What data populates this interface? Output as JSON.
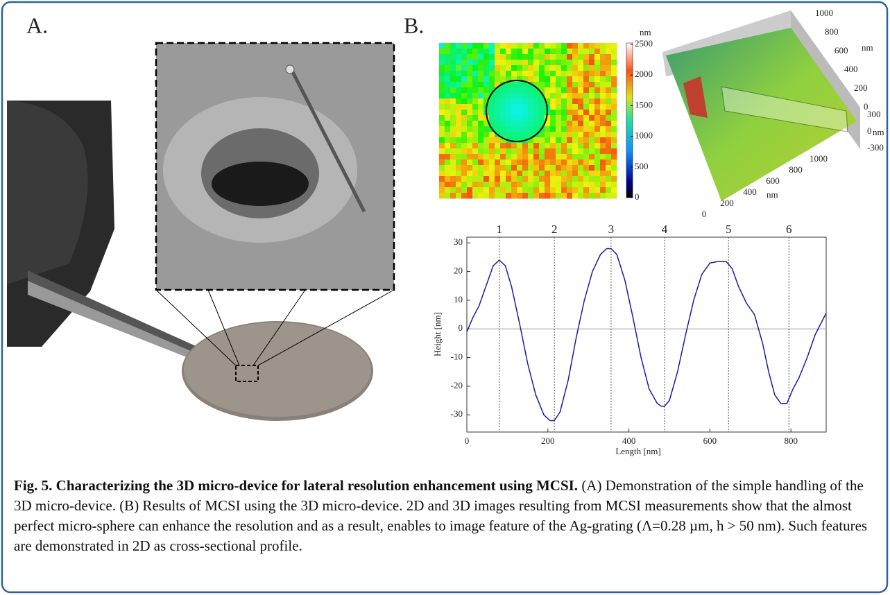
{
  "panel_labels": [
    "A.",
    "B."
  ],
  "colorbar": {
    "unit": "nm",
    "ticks": [
      0,
      500,
      1000,
      1500,
      2000,
      2500
    ]
  },
  "surface_3d": {
    "top_ticks": [
      1000,
      800,
      600,
      400,
      200,
      0
    ],
    "top_unit": "nm",
    "z_ticks": [
      300,
      0,
      -300
    ],
    "z_unit": "nm",
    "bottom_ticks": [
      1000,
      800,
      600,
      400,
      200,
      0
    ],
    "bottom_unit": "nm"
  },
  "chart_data": {
    "type": "line",
    "xlabel": "Length [nm]",
    "ylabel": "Height [nm]",
    "color": "#1a1aa6",
    "x": [
      0,
      15,
      30,
      50,
      65,
      80,
      95,
      110,
      130,
      150,
      170,
      190,
      205,
      216,
      230,
      250,
      270,
      290,
      310,
      330,
      345,
      356,
      370,
      390,
      410,
      430,
      450,
      470,
      480,
      488,
      500,
      520,
      540,
      560,
      580,
      600,
      620,
      640,
      655,
      670,
      690,
      710,
      730,
      745,
      760,
      775,
      790,
      805,
      820,
      840,
      860,
      887
    ],
    "values": [
      -1,
      4,
      8,
      16,
      22,
      24,
      22,
      15,
      2,
      -12,
      -23,
      -30,
      -32,
      -32,
      -29,
      -18,
      -3,
      10,
      20,
      26,
      28,
      28,
      26,
      17,
      4,
      -10,
      -21,
      -26,
      -27,
      -27,
      -25,
      -15,
      -2,
      10,
      19,
      23,
      23.5,
      23.5,
      21,
      15,
      9,
      5,
      -5,
      -15,
      -23,
      -26,
      -26,
      -21,
      -17,
      -10,
      -2,
      5.5
    ],
    "xlim": [
      0,
      887
    ],
    "ylim": [
      -36,
      32
    ],
    "xticks": [
      0,
      200,
      400,
      600,
      800
    ],
    "yticks": [
      -30,
      -20,
      -10,
      0,
      10,
      20,
      30
    ],
    "markers": [
      {
        "label": "1",
        "x": 80
      },
      {
        "label": "2",
        "x": 216
      },
      {
        "label": "3",
        "x": 356
      },
      {
        "label": "4",
        "x": 488
      },
      {
        "label": "5",
        "x": 646
      },
      {
        "label": "6",
        "x": 795
      }
    ]
  },
  "caption": {
    "title": "Fig. 5.  Characterizing the 3D micro-device for lateral resolution enhancement using MCSI.",
    "text": "(A) Demonstration of the simple handling of the 3D micro-device. (B) Results of MCSI using the 3D micro-device. 2D and 3D images resulting from MCSI measurements show that the almost perfect micro-sphere can enhance the resolution and as a result, enables to image feature of the Ag-grating (Λ=0.28 µm, h > 50 nm). Such features are demonstrated in 2D as cross-sectional profile."
  }
}
